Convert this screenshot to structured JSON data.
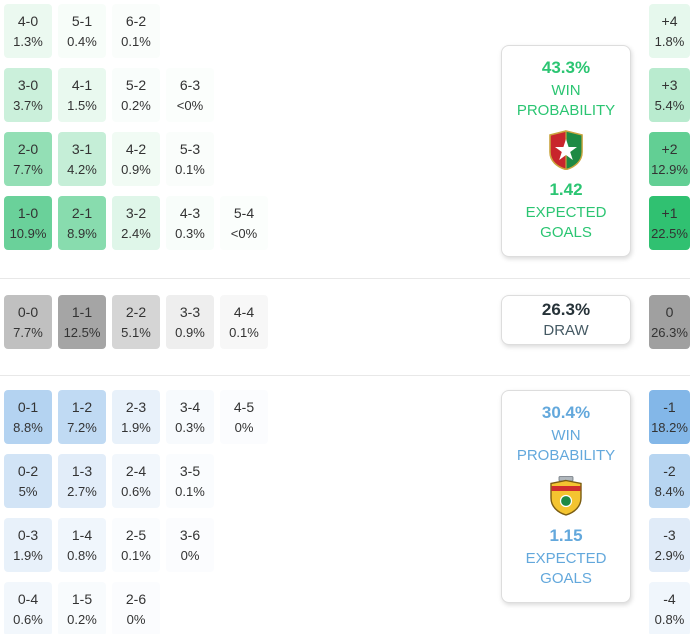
{
  "chart_data": {
    "type": "heatmap",
    "description": "Correct score probability matrix with win/draw probabilities and expected goals",
    "accent_colors": {
      "home": "#2bc572",
      "draw": "#9e9e9e",
      "away": "#63a8dc"
    },
    "sections": {
      "home": {
        "outcome": "home_win",
        "win_probability": "43.3%",
        "win_probability_value": 43.3,
        "expected_goals": "1.42",
        "crest": "home-team-crest",
        "labels": {
          "win": [
            "WIN",
            "PROBABILITY"
          ],
          "goals": [
            "EXPECTED",
            "GOALS"
          ]
        },
        "rows": [
          [
            {
              "score": "4-0",
              "pct": "1.3%",
              "bg": "#ebf9f0"
            },
            {
              "score": "5-1",
              "pct": "0.4%",
              "bg": "#f7fdf9"
            },
            {
              "score": "6-2",
              "pct": "0.1%",
              "bg": "#fafdfb"
            }
          ],
          [
            {
              "score": "3-0",
              "pct": "3.7%",
              "bg": "#cbf0db"
            },
            {
              "score": "4-1",
              "pct": "1.5%",
              "bg": "#e9f9ef"
            },
            {
              "score": "5-2",
              "pct": "0.2%",
              "bg": "#f9fdfb"
            },
            {
              "score": "6-3",
              "pct": "<0%",
              "bg": "#fbfefc"
            }
          ],
          [
            {
              "score": "2-0",
              "pct": "7.7%",
              "bg": "#93dfb5"
            },
            {
              "score": "3-1",
              "pct": "4.2%",
              "bg": "#c5eed7"
            },
            {
              "score": "4-2",
              "pct": "0.9%",
              "bg": "#f1fbf4"
            },
            {
              "score": "5-3",
              "pct": "0.1%",
              "bg": "#fafdfb"
            }
          ],
          [
            {
              "score": "1-0",
              "pct": "10.9%",
              "bg": "#6ad19a"
            },
            {
              "score": "2-1",
              "pct": "8.9%",
              "bg": "#88dcae"
            },
            {
              "score": "3-2",
              "pct": "2.4%",
              "bg": "#dff6e9"
            },
            {
              "score": "4-3",
              "pct": "0.3%",
              "bg": "#f8fdfa"
            },
            {
              "score": "5-4",
              "pct": "<0%",
              "bg": "#fbfefc"
            }
          ]
        ],
        "margins": [
          {
            "score": "+4",
            "pct": "1.8%",
            "bg": "#e6f8ed"
          },
          {
            "score": "+3",
            "pct": "5.4%",
            "bg": "#b9ebcf"
          },
          {
            "score": "+2",
            "pct": "12.9%",
            "bg": "#62cf94"
          },
          {
            "score": "+1",
            "pct": "22.5%",
            "bg": "#30c171"
          }
        ]
      },
      "draw": {
        "outcome": "draw",
        "probability": "26.3%",
        "probability_value": 26.3,
        "label": "DRAW",
        "rows": [
          [
            {
              "score": "0-0",
              "pct": "7.7%",
              "bg": "#c0c0c0"
            },
            {
              "score": "1-1",
              "pct": "12.5%",
              "bg": "#a5a5a5"
            },
            {
              "score": "2-2",
              "pct": "5.1%",
              "bg": "#d5d5d5"
            },
            {
              "score": "3-3",
              "pct": "0.9%",
              "bg": "#eeeeee"
            },
            {
              "score": "4-4",
              "pct": "0.1%",
              "bg": "#f7f7f7"
            }
          ]
        ],
        "margins": [
          {
            "score": "0",
            "pct": "26.3%",
            "bg": "#a0a0a0"
          }
        ]
      },
      "away": {
        "outcome": "away_win",
        "win_probability": "30.4%",
        "win_probability_value": 30.4,
        "expected_goals": "1.15",
        "crest": "away-team-crest",
        "labels": {
          "win": [
            "WIN",
            "PROBABILITY"
          ],
          "goals": [
            "EXPECTED",
            "GOALS"
          ]
        },
        "rows": [
          [
            {
              "score": "0-1",
              "pct": "8.8%",
              "bg": "#b4d3f1"
            },
            {
              "score": "1-2",
              "pct": "7.2%",
              "bg": "#c0daf3"
            },
            {
              "score": "2-3",
              "pct": "1.9%",
              "bg": "#e8f1fa"
            },
            {
              "score": "3-4",
              "pct": "0.3%",
              "bg": "#f7fafd"
            },
            {
              "score": "4-5",
              "pct": "0%",
              "bg": "#fbfcfe"
            }
          ],
          [
            {
              "score": "0-2",
              "pct": "5%",
              "bg": "#d2e4f6"
            },
            {
              "score": "1-3",
              "pct": "2.7%",
              "bg": "#e2edf9"
            },
            {
              "score": "2-4",
              "pct": "0.6%",
              "bg": "#f2f7fc"
            },
            {
              "score": "3-5",
              "pct": "0.1%",
              "bg": "#fafcfe"
            }
          ],
          [
            {
              "score": "0-3",
              "pct": "1.9%",
              "bg": "#e8f1fa"
            },
            {
              "score": "1-4",
              "pct": "0.8%",
              "bg": "#f0f6fc"
            },
            {
              "score": "2-5",
              "pct": "0.1%",
              "bg": "#fafcfe"
            },
            {
              "score": "3-6",
              "pct": "0%",
              "bg": "#fbfcfe"
            }
          ],
          [
            {
              "score": "0-4",
              "pct": "0.6%",
              "bg": "#f2f7fc"
            },
            {
              "score": "1-5",
              "pct": "0.2%",
              "bg": "#f8fbfd"
            },
            {
              "score": "2-6",
              "pct": "0%",
              "bg": "#fbfcfe"
            }
          ]
        ],
        "margins": [
          {
            "score": "-1",
            "pct": "18.2%",
            "bg": "#83b7e8"
          },
          {
            "score": "-2",
            "pct": "8.4%",
            "bg": "#b7d5f1"
          },
          {
            "score": "-3",
            "pct": "2.9%",
            "bg": "#e0ebf8"
          },
          {
            "score": "-4",
            "pct": "0.8%",
            "bg": "#f0f6fc"
          }
        ]
      }
    }
  }
}
